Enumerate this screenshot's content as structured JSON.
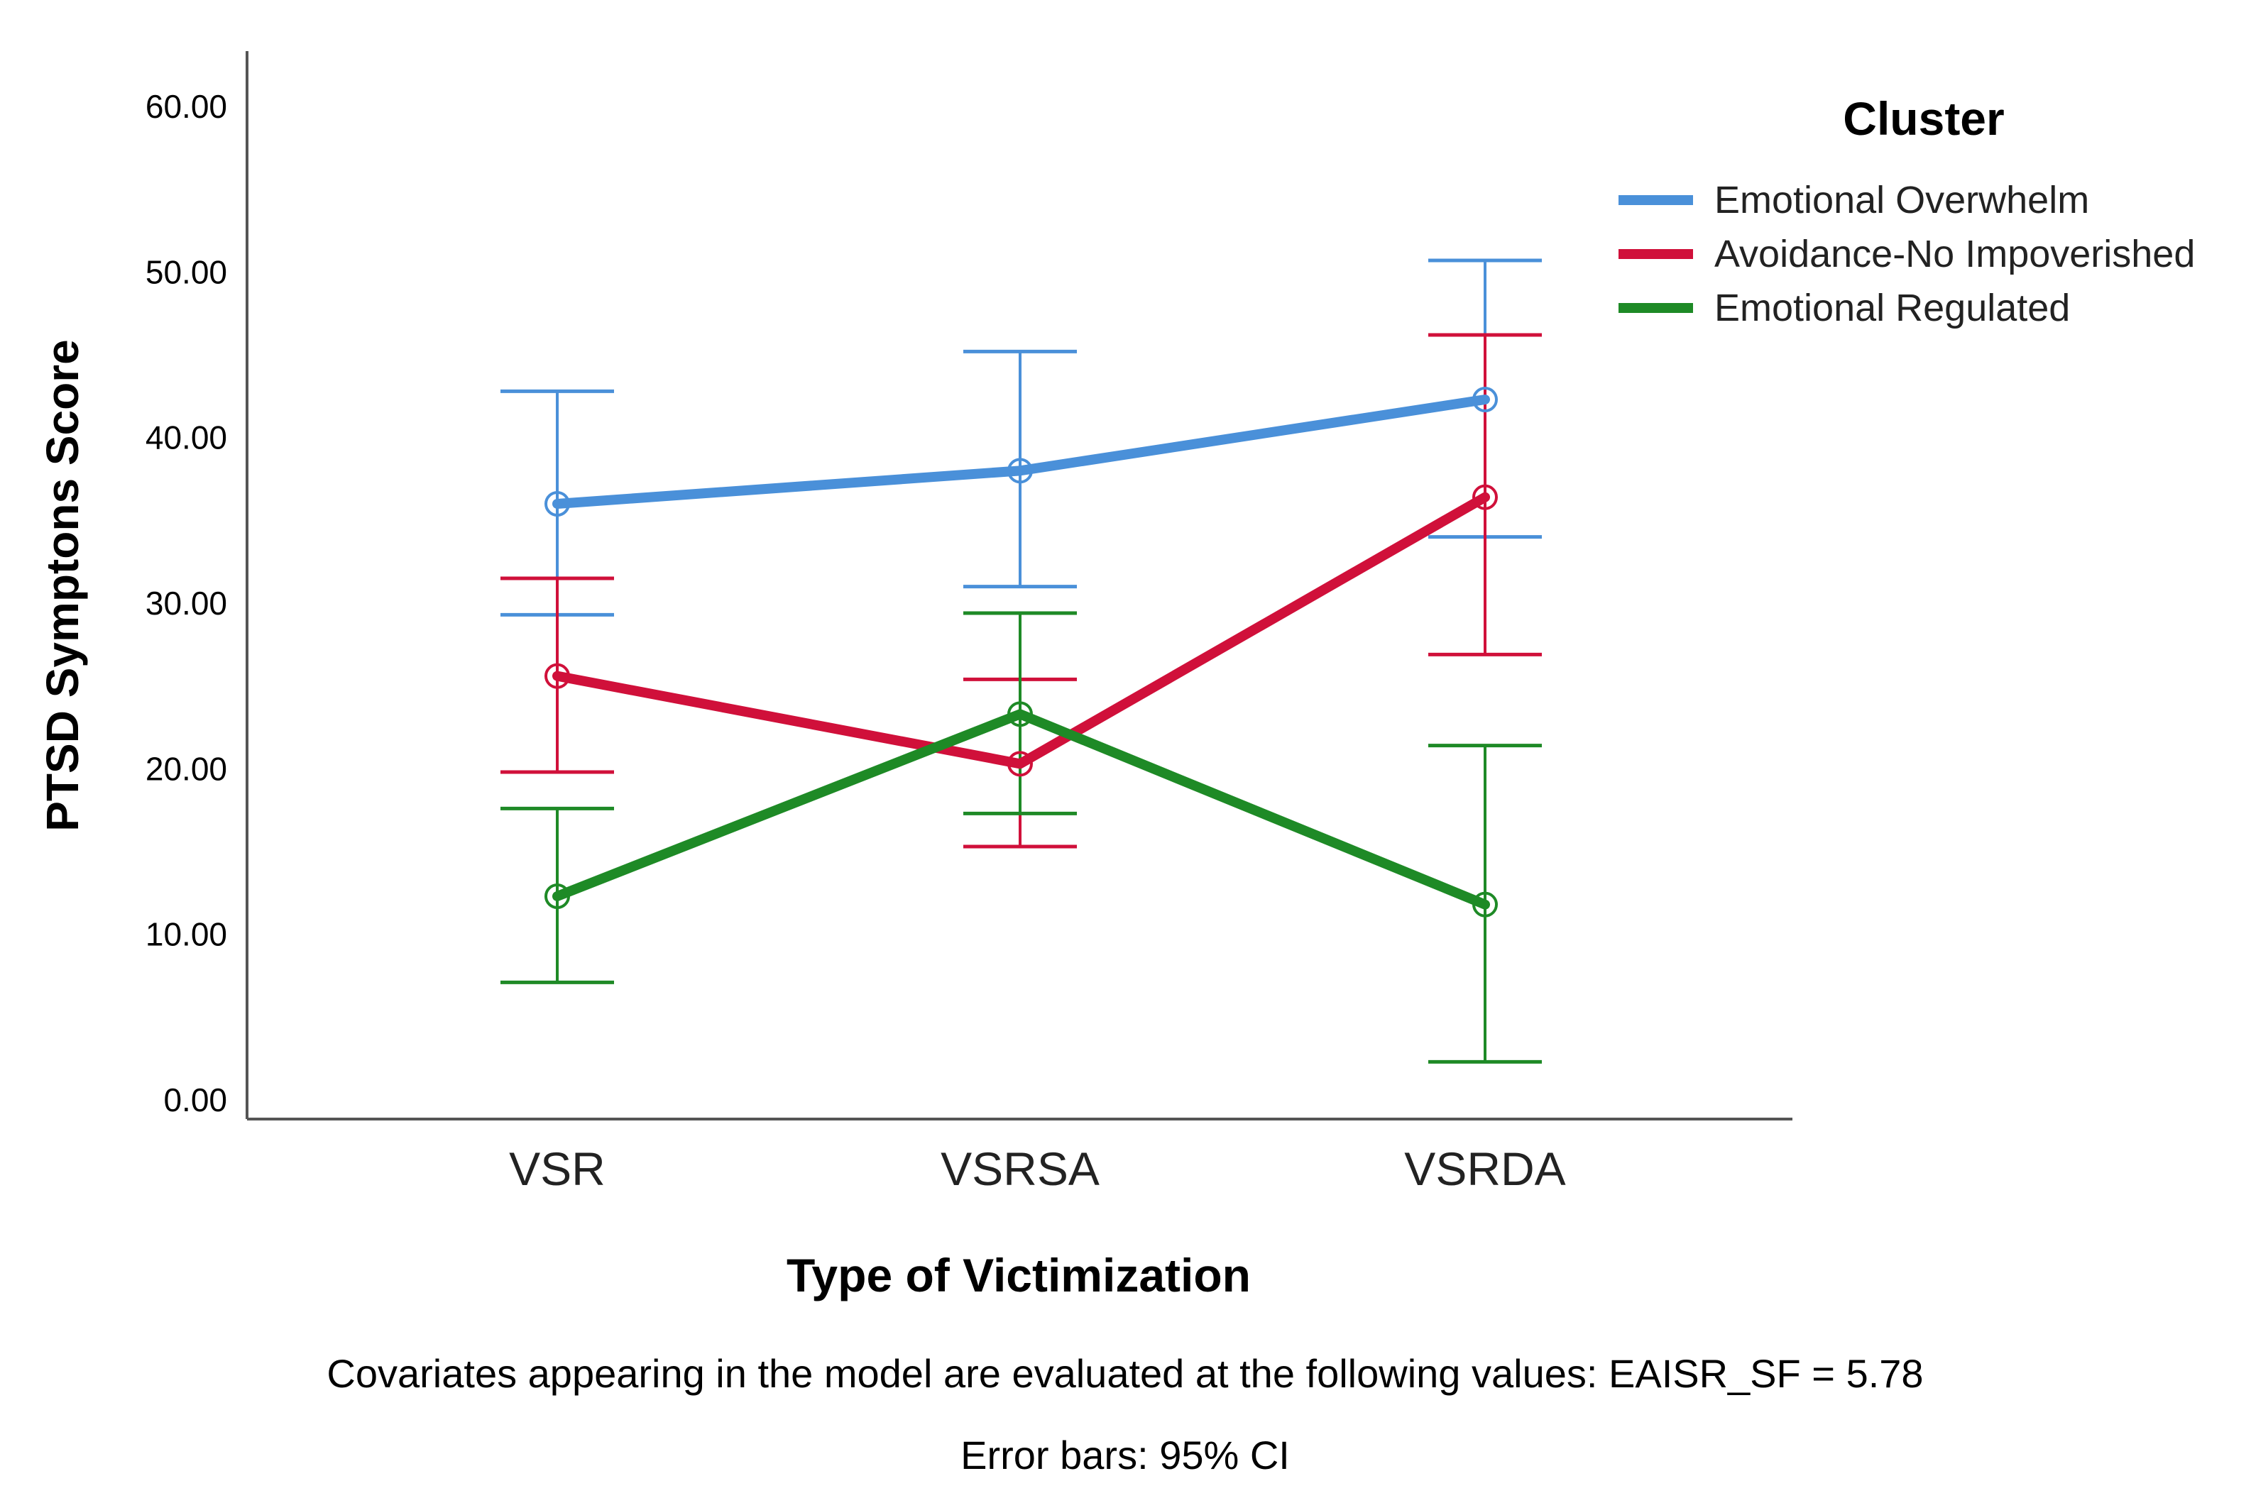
{
  "chart_data": {
    "type": "line",
    "title": "",
    "xlabel": "Type of Victimization",
    "ylabel": "PTSD Symptons Score",
    "categories": [
      "VSR",
      "VSRSA",
      "VSRDA"
    ],
    "y_ticks": [
      "0.00",
      "10.00",
      "20.00",
      "30.00",
      "40.00",
      "50.00",
      "60.00"
    ],
    "ylim": [
      0,
      60
    ],
    "grid": false,
    "legend": {
      "title": "Cluster",
      "position": "top-right"
    },
    "series": [
      {
        "name": "Emotional Overwhelm",
        "color": "#4a90d9",
        "values": [
          36.0,
          38.0,
          42.3
        ],
        "ci_lower": [
          29.3,
          31.0,
          34.0
        ],
        "ci_upper": [
          42.8,
          45.2,
          50.7
        ]
      },
      {
        "name": "Avoidance-No Impoverished",
        "color": "#d0103a",
        "values": [
          25.6,
          20.3,
          36.4
        ],
        "ci_lower": [
          19.8,
          15.3,
          26.9
        ],
        "ci_upper": [
          31.5,
          25.4,
          46.2
        ]
      },
      {
        "name": "Emotional Regulated",
        "color": "#1e8a26",
        "values": [
          12.3,
          23.3,
          11.8
        ],
        "ci_lower": [
          7.1,
          17.3,
          2.3
        ],
        "ci_upper": [
          17.6,
          29.4,
          21.4
        ]
      }
    ],
    "footnotes": [
      "Covariates appearing in the model are evaluated at the following values: EAISR_SF = 5.78",
      "Error bars: 95% CI"
    ]
  }
}
